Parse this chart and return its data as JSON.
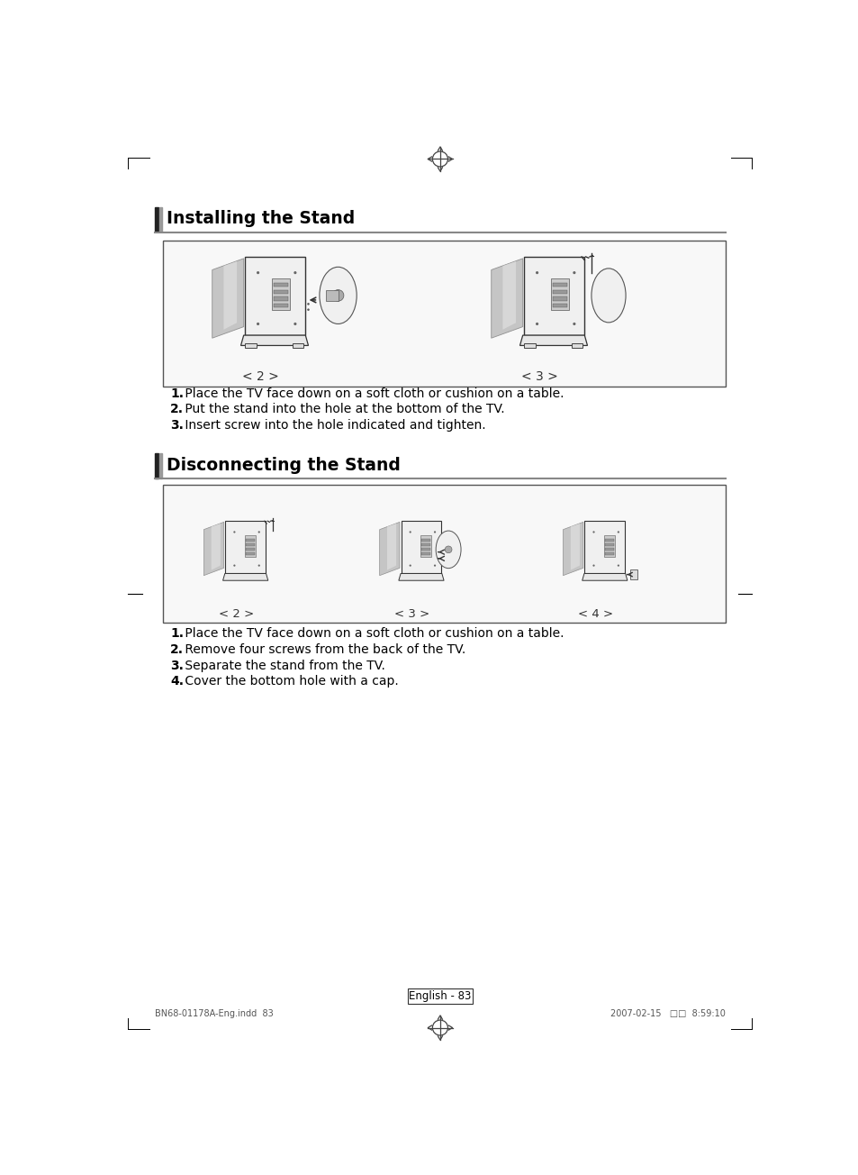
{
  "page_bg": "#ffffff",
  "title1": "Installing the Stand",
  "title2": "Disconnecting the Stand",
  "install_caption1": "< 2 >",
  "install_caption2": "< 3 >",
  "install_steps": [
    "1. Place the TV face down on a soft cloth or cushion on a table.",
    "2. Put the stand into the hole at the bottom of the TV.",
    "3. Insert screw into the hole indicated and tighten."
  ],
  "disconnect_caption1": "< 2 >",
  "disconnect_caption2": "< 3 >",
  "disconnect_caption3": "< 4 >",
  "disconnect_steps": [
    "1. Place the TV face down on a soft cloth or cushion on a table.",
    "2. Remove four screws from the back of the TV.",
    "3. Separate the stand from the TV.",
    "4. Cover the bottom hole with a cap."
  ],
  "footer_left": "BN68-01178A-Eng.indd  83",
  "footer_right": "2007-02-15   □□  8:59:10",
  "page_number": "English - 83"
}
